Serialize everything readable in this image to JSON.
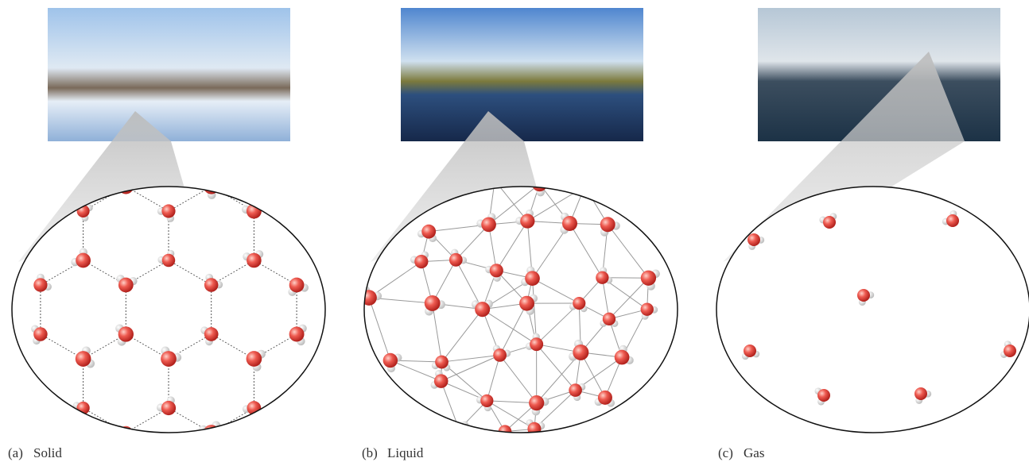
{
  "panels": [
    {
      "label": "(a)",
      "caption": "Solid"
    },
    {
      "label": "(b)",
      "caption": "Liquid"
    },
    {
      "label": "(c)",
      "caption": "Gas"
    }
  ]
}
